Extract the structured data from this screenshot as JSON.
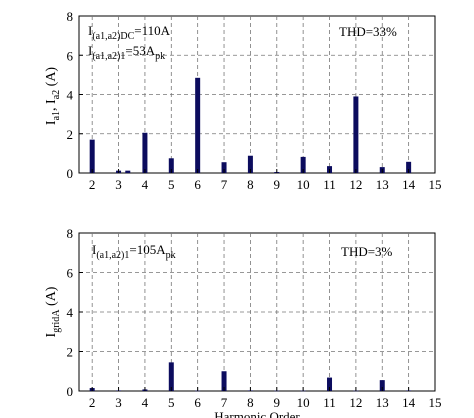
{
  "chart_data": [
    {
      "type": "bar",
      "xlabel": "",
      "ylabel": {
        "base": "I",
        "sub1": "a1",
        "mid": ", I",
        "sub2": "a2",
        "unit": " (A)"
      },
      "xlim": [
        1.5,
        15
      ],
      "ylim": [
        0,
        8
      ],
      "x_ticks": [
        2,
        3,
        4,
        5,
        6,
        7,
        8,
        9,
        10,
        11,
        12,
        13,
        14,
        15
      ],
      "y_ticks": [
        0,
        2,
        4,
        6,
        8
      ],
      "grid": true,
      "bar_color": "#0c0c5e",
      "categories": [
        2,
        3,
        4,
        5,
        6,
        7,
        8,
        9,
        10,
        11,
        12,
        13,
        14
      ],
      "values": [
        1.7,
        0.12,
        2.05,
        0.75,
        4.85,
        0.55,
        0.88,
        0.05,
        0.82,
        0.35,
        3.9,
        0.3,
        0.57
      ],
      "extra_bars": [
        {
          "x": 3.35,
          "value": 0.12
        }
      ],
      "annotations": {
        "line1": {
          "base": "I",
          "sub": "(a1,a2)DC",
          "rest": "=110A"
        },
        "line2": {
          "base": "I",
          "sub": "(a1,a2)1",
          "rest": "=53A",
          "sub2": "pk"
        },
        "thd": "THD=33%"
      }
    },
    {
      "type": "bar",
      "xlabel": "Harmonic Order",
      "ylabel": {
        "base": "I",
        "sub1": "gridA",
        "mid": "",
        "sub2": "",
        "unit": " (A)"
      },
      "xlim": [
        1.5,
        15
      ],
      "ylim": [
        0,
        8
      ],
      "x_ticks": [
        2,
        3,
        4,
        5,
        6,
        7,
        8,
        9,
        10,
        11,
        12,
        13,
        14,
        15
      ],
      "y_ticks": [
        0,
        2,
        4,
        6,
        8
      ],
      "grid": true,
      "bar_color": "#0c0c5e",
      "categories": [
        2,
        3,
        4,
        5,
        6,
        7,
        8,
        9,
        10,
        11,
        12,
        13,
        14
      ],
      "values": [
        0.15,
        0.03,
        0.08,
        1.45,
        0.02,
        1.0,
        0.03,
        0.02,
        0.02,
        0.68,
        0.02,
        0.55,
        0.03
      ],
      "annotations": {
        "line1": {
          "base": "I",
          "sub": "(a1,a2)1",
          "rest": "=105A",
          "sub2": "pk"
        },
        "thd": "THD=3%"
      }
    }
  ]
}
